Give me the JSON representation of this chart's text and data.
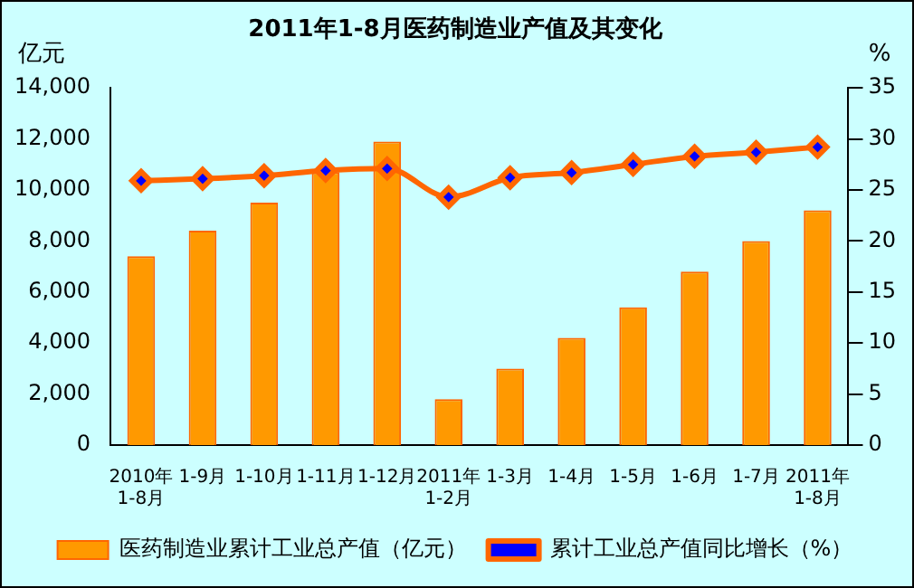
{
  "chart_data": {
    "type": "bar",
    "title": "2011年1-8月医药制造业产值及其变化",
    "ylabel": "亿元",
    "y2label": "%",
    "categories": [
      "2010年\n1-8月",
      "1-9月",
      "1-10月",
      "1-11月",
      "1-12月",
      "2011年\n1-2月",
      "1-3月",
      "1-4月",
      "1-5月",
      "1-6月",
      "1-7月",
      "2011年\n1-8月"
    ],
    "series": [
      {
        "name": "医药制造业累计工业总产值（亿元）",
        "color": "#ff9900",
        "values": [
          7400,
          8400,
          9500,
          10700,
          11900,
          1800,
          3000,
          4200,
          5400,
          6800,
          8000,
          9200
        ]
      },
      {
        "name": "累计工业总产值同比增长（%）",
        "type": "line",
        "axis": "y2",
        "color": "#ff6600",
        "marker": "diamond",
        "values": [
          25.9,
          26.1,
          26.4,
          26.9,
          27.1,
          24.3,
          26.2,
          26.7,
          27.5,
          28.3,
          28.7,
          29.2
        ]
      }
    ],
    "ylim": [
      0,
      14000
    ],
    "yticks": [
      0,
      {
        "value": 2000,
        "label": "2,000"
      },
      {
        "value": 4000,
        "label": "4,000"
      },
      {
        "value": 6000,
        "label": "6,000"
      },
      {
        "value": 8000,
        "label": "8,000"
      },
      {
        "value": 10000,
        "label": "10,000"
      },
      {
        "value": 12000,
        "label": "12,000"
      },
      {
        "value": 14000,
        "label": "14,000"
      }
    ],
    "y2lim": [
      0,
      35
    ],
    "y2ticks": [
      0,
      5,
      10,
      15,
      20,
      25,
      30,
      35
    ],
    "grid": false,
    "legend": "bottom"
  }
}
